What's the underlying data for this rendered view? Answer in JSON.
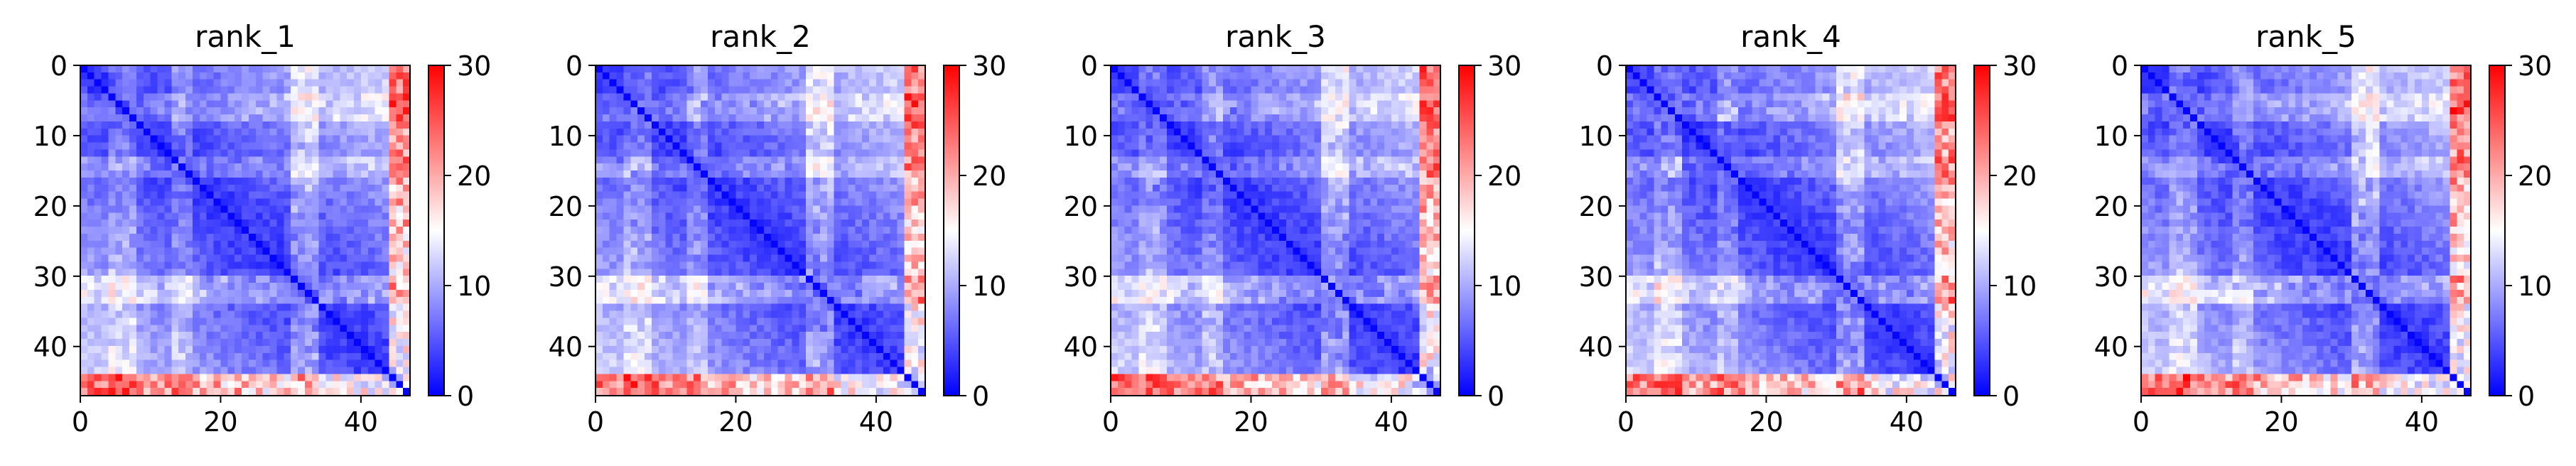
{
  "chart_data": [
    {
      "type": "heatmap",
      "title": "rank_1",
      "xlim": [
        0,
        47
      ],
      "ylim": [
        47,
        0
      ],
      "xticks": [
        "0",
        "20",
        "40"
      ],
      "yticks": [
        "0",
        "10",
        "20",
        "30",
        "40"
      ],
      "colorbar": {
        "min": 0,
        "max": 30,
        "ticks": [
          "0",
          "10",
          "20",
          "30"
        ],
        "colormap": "bwr"
      }
    },
    {
      "type": "heatmap",
      "title": "rank_2",
      "xlim": [
        0,
        47
      ],
      "ylim": [
        47,
        0
      ],
      "xticks": [
        "0",
        "20",
        "40"
      ],
      "yticks": [
        "0",
        "10",
        "20",
        "30",
        "40"
      ],
      "colorbar": {
        "min": 0,
        "max": 30,
        "ticks": [
          "0",
          "10",
          "20",
          "30"
        ],
        "colormap": "bwr"
      }
    },
    {
      "type": "heatmap",
      "title": "rank_3",
      "xlim": [
        0,
        47
      ],
      "ylim": [
        47,
        0
      ],
      "xticks": [
        "0",
        "20",
        "40"
      ],
      "yticks": [
        "0",
        "10",
        "20",
        "30",
        "40"
      ],
      "colorbar": {
        "min": 0,
        "max": 30,
        "ticks": [
          "0",
          "10",
          "20",
          "30"
        ],
        "colormap": "bwr"
      }
    },
    {
      "type": "heatmap",
      "title": "rank_4",
      "xlim": [
        0,
        47
      ],
      "ylim": [
        47,
        0
      ],
      "xticks": [
        "0",
        "20",
        "40"
      ],
      "yticks": [
        "0",
        "10",
        "20",
        "30",
        "40"
      ],
      "colorbar": {
        "min": 0,
        "max": 30,
        "ticks": [
          "0",
          "10",
          "20",
          "30"
        ],
        "colormap": "bwr"
      }
    },
    {
      "type": "heatmap",
      "title": "rank_5",
      "xlim": [
        0,
        47
      ],
      "ylim": [
        47,
        0
      ],
      "xticks": [
        "0",
        "20",
        "40"
      ],
      "yticks": [
        "0",
        "10",
        "20",
        "30",
        "40"
      ],
      "colorbar": {
        "min": 0,
        "max": 30,
        "ticks": [
          "0",
          "10",
          "20",
          "30"
        ],
        "colormap": "bwr"
      }
    }
  ],
  "colors": {
    "low": "#0000ff",
    "mid": "#ffffff",
    "high": "#ff0000"
  }
}
